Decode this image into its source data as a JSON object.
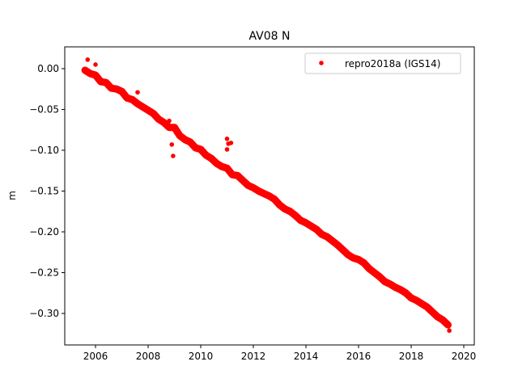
{
  "chart_data": {
    "type": "scatter",
    "title": "AV08 N",
    "xlabel": "",
    "ylabel": "m",
    "xlim": [
      2004.83,
      2020.4
    ],
    "ylim": [
      -0.3386,
      0.0267
    ],
    "xticks": [
      2006,
      2008,
      2010,
      2012,
      2014,
      2016,
      2018,
      2020
    ],
    "yticks": [
      0.0,
      -0.05,
      -0.1,
      -0.15,
      -0.2,
      -0.25,
      -0.3
    ],
    "ytick_labels": [
      "0.00",
      "−0.05",
      "−0.10",
      "−0.15",
      "−0.20",
      "−0.25",
      "−0.30"
    ],
    "grid": false,
    "legend_placement": "top-right",
    "series": [
      {
        "name": "repro2018a (IGS14)",
        "color": "#ff0000",
        "marker": "circle",
        "x": [
          2005.6,
          2005.8,
          2006.0,
          2006.2,
          2006.4,
          2006.6,
          2006.8,
          2007.0,
          2007.2,
          2007.4,
          2007.6,
          2007.8,
          2008.0,
          2008.2,
          2008.4,
          2008.6,
          2008.8,
          2009.0,
          2009.2,
          2009.4,
          2009.6,
          2009.8,
          2010.0,
          2010.2,
          2010.4,
          2010.6,
          2010.8,
          2011.0,
          2011.2,
          2011.4,
          2011.6,
          2011.8,
          2012.0,
          2012.2,
          2012.4,
          2012.6,
          2012.8,
          2013.0,
          2013.2,
          2013.4,
          2013.6,
          2013.8,
          2014.0,
          2014.2,
          2014.4,
          2014.6,
          2014.8,
          2015.0,
          2015.2,
          2015.4,
          2015.6,
          2015.8,
          2016.0,
          2016.2,
          2016.4,
          2016.6,
          2016.8,
          2017.0,
          2017.2,
          2017.4,
          2017.6,
          2017.8,
          2018.0,
          2018.2,
          2018.4,
          2018.6,
          2018.8,
          2019.0,
          2019.2,
          2019.4
        ],
        "y": [
          -0.002,
          -0.006,
          -0.008,
          -0.016,
          -0.017,
          -0.024,
          -0.025,
          -0.028,
          -0.036,
          -0.038,
          -0.043,
          -0.047,
          -0.051,
          -0.055,
          -0.062,
          -0.066,
          -0.072,
          -0.072,
          -0.082,
          -0.087,
          -0.09,
          -0.097,
          -0.099,
          -0.106,
          -0.11,
          -0.116,
          -0.12,
          -0.122,
          -0.13,
          -0.131,
          -0.137,
          -0.143,
          -0.146,
          -0.15,
          -0.153,
          -0.156,
          -0.16,
          -0.167,
          -0.172,
          -0.175,
          -0.18,
          -0.186,
          -0.189,
          -0.193,
          -0.197,
          -0.203,
          -0.206,
          -0.211,
          -0.216,
          -0.222,
          -0.228,
          -0.232,
          -0.234,
          -0.238,
          -0.245,
          -0.25,
          -0.255,
          -0.261,
          -0.264,
          -0.268,
          -0.271,
          -0.275,
          -0.281,
          -0.284,
          -0.288,
          -0.292,
          -0.298,
          -0.304,
          -0.308,
          -0.314
        ],
        "outliers_x": [
          2005.7,
          2006.0,
          2007.6,
          2008.8,
          2008.95,
          2008.9,
          2011.0,
          2011.05,
          2011.15,
          2011.0,
          2019.45
        ],
        "outliers_y": [
          0.011,
          0.005,
          -0.029,
          -0.064,
          -0.107,
          -0.093,
          -0.086,
          -0.092,
          -0.091,
          -0.099,
          -0.321
        ]
      }
    ]
  }
}
